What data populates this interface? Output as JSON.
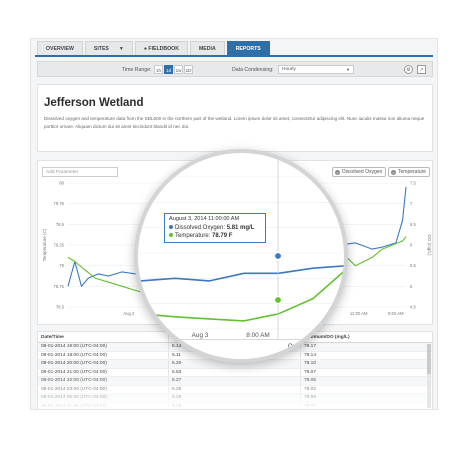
{
  "tabs": [
    {
      "label": "OVERVIEW",
      "active": false
    },
    {
      "label": "SITES",
      "active": false,
      "dropdown": true
    },
    {
      "label": "FIELDBOOK",
      "active": false,
      "icon": "pin-icon"
    },
    {
      "label": "MEDIA",
      "active": false
    },
    {
      "label": "REPORTS",
      "active": true
    }
  ],
  "toolbar": {
    "time_range_label": "Time Range:",
    "time_range_options": [
      "1h",
      "1d",
      "1w",
      "1D"
    ],
    "time_range_selected": "1d",
    "data_condensing_label": "Data Condensing:",
    "data_condensing_value": "Hourly",
    "icons": [
      "settings-icon",
      "export-icon"
    ]
  },
  "site": {
    "title": "Jefferson Wetland",
    "description": "Dissolved oxygen and temperature data from the SDL500 in the northern part of the wetland. Lorem ipsum dolor sit amet, consectetur adipiscing elit. Nunc iaculis massa non aliuma neque porttior ornare. Aliquam dictum dui sit amet tincindunt blandit id nec dui."
  },
  "chart": {
    "add_parameter_placeholder": "Add Parameter",
    "legend_buttons": [
      "Dissolved Oxygen",
      "Temperature"
    ],
    "colors": {
      "dissolved_oxygen": "#3a7ac0",
      "temperature": "#62c22e"
    }
  },
  "chart_data": {
    "type": "line",
    "title": "",
    "ylabel_left": "Temperature (C)",
    "ylabel_right": "DO (mg/L)",
    "y_left_ticks": [
      "80",
      "79.75",
      "79.5",
      "79.25",
      "79",
      "78.75",
      "78.5"
    ],
    "y_left_range": [
      78.5,
      80
    ],
    "y_right_ticks": [
      "7.5",
      "7",
      "6.5",
      "6",
      "5.5",
      "5",
      "4.5"
    ],
    "y_right_range": [
      4.5,
      7.5
    ],
    "x_tick_labels": [
      "Aug 2",
      "12:00 AM",
      "12:00 AM",
      "8:00 AM"
    ],
    "series": [
      {
        "name": "Dissolved Oxygen",
        "axis": "right",
        "t": [
          0,
          0.02,
          0.04,
          0.06,
          0.09,
          0.12,
          0.16,
          0.2,
          0.25,
          0.3,
          0.35,
          0.4,
          0.45,
          0.5,
          0.55,
          0.6,
          0.65,
          0.7,
          0.75,
          0.8,
          0.85,
          0.9,
          0.93,
          0.95,
          0.97,
          0.99,
          1.0
        ],
        "values": [
          5.0,
          5.6,
          5.0,
          5.2,
          5.3,
          5.25,
          5.35,
          5.3,
          5.45,
          5.5,
          5.45,
          5.6,
          5.6,
          5.7,
          5.75,
          5.8,
          5.9,
          6.05,
          6.1,
          6.0,
          6.05,
          5.9,
          5.95,
          6.0,
          6.05,
          6.6,
          7.4
        ]
      },
      {
        "name": "Temperature",
        "axis": "left",
        "t": [
          0,
          0.02,
          0.05,
          0.08,
          0.12,
          0.16,
          0.2,
          0.25,
          0.3,
          0.35,
          0.4,
          0.45,
          0.5,
          0.55,
          0.6,
          0.65,
          0.7,
          0.75,
          0.8,
          0.85,
          0.9,
          0.93,
          0.96,
          0.99,
          1.0
        ],
        "values": [
          79.1,
          79.05,
          78.95,
          78.85,
          78.8,
          78.75,
          78.7,
          78.65,
          78.62,
          78.6,
          78.58,
          78.65,
          78.8,
          79.1,
          79.35,
          79.6,
          79.7,
          79.55,
          79.2,
          79.0,
          79.1,
          79.2,
          79.25,
          79.3,
          79.35
        ]
      }
    ]
  },
  "lens": {
    "tooltip": {
      "date": "August 3, 2014 11:00:00 AM",
      "do_label": "Dissolved Oxygen:",
      "do_value": "5.81 mg/L",
      "temp_label": "Temperature:",
      "temp_value": "78.79 F"
    },
    "x_labels": [
      "Aug 3",
      "8:00 AM"
    ],
    "table_headers": [
      "Aquat",
      "Optimum/DO (mg/L)"
    ],
    "y_right_ticks": [
      "7.5",
      "7",
      "6.5",
      "6",
      "5.5",
      "5",
      "4.5"
    ]
  },
  "table": {
    "headers": [
      "Date/Time",
      "Aquatic",
      "Optimum/DO (mg/L)"
    ],
    "rows": [
      [
        "08-01-2014 19:00 (UTC-04:00)",
        "5.14",
        "79.17"
      ],
      [
        "08-01-2014 19:00 (UTC-04:00)",
        "5.11",
        "79.14"
      ],
      [
        "08-01-2014 20:00 (UTC-04:00)",
        "5.20",
        "79.10"
      ],
      [
        "08-01-2014 21:00 (UTC-04:00)",
        "5.63",
        "79.07"
      ],
      [
        "08-01-2014 22:00 (UTC-04:00)",
        "5.27",
        "79.05"
      ],
      [
        "08-01-2014 23:00 (UTC-04:00)",
        "5.25",
        "79.02"
      ],
      [
        "08-01-2014 00:00 (UTC-04:00)",
        "5.26",
        "78.99"
      ],
      [
        "08-01-2014 01:00 (UTC-04:00)",
        "5.28",
        "78.97"
      ]
    ]
  }
}
